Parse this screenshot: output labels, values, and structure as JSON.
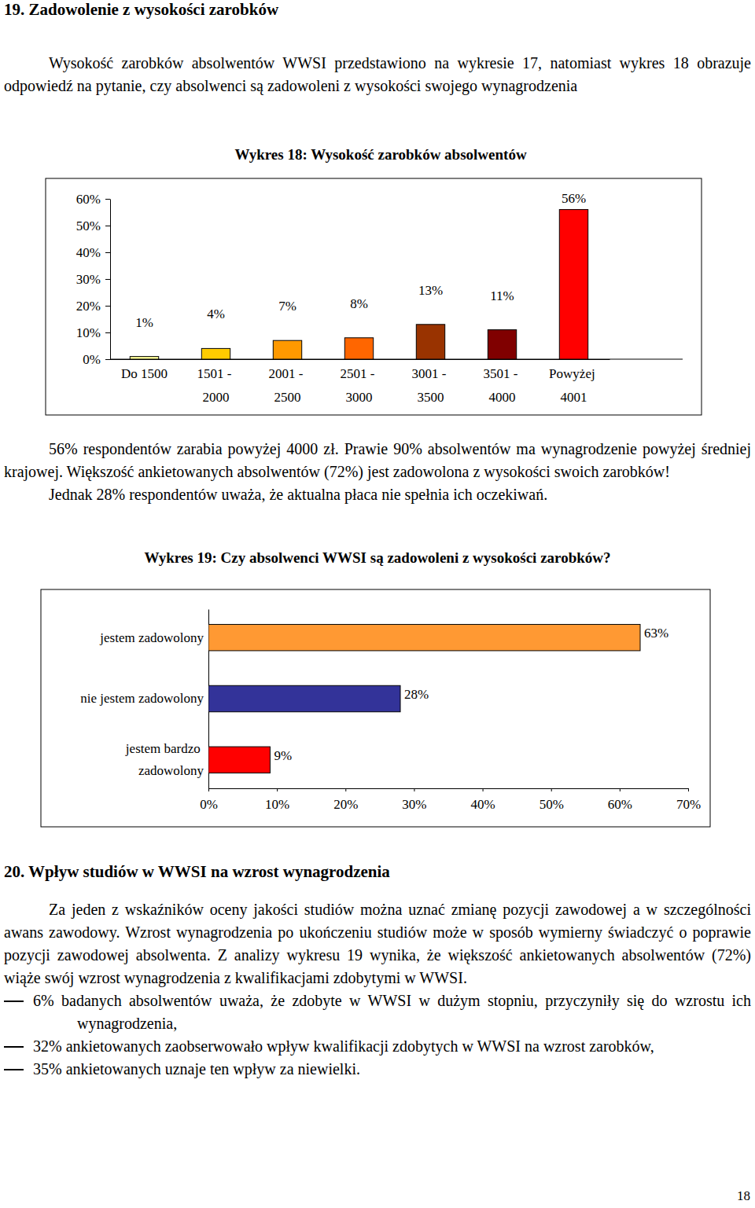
{
  "heading1": "19. Zadowolenie z wysokości zarobków",
  "intro": "Wysokość zarobków absolwentów WWSI przedstawiono na wykresie 17, natomiast wykres 18 obrazuje odpowiedź na pytanie, czy absolwenci są zadowoleni z wysokości swojego wynagrodzenia",
  "chart_data": [
    {
      "type": "bar",
      "title": "Wykres 18: Wysokość zarobków absolwentów",
      "categories": [
        "Do 1500",
        "1501 - 2000",
        "2001 - 2500",
        "2501 - 3000",
        "3001 - 3500",
        "3501 - 4000",
        "Powyżej 4001"
      ],
      "values": [
        1,
        4,
        7,
        8,
        13,
        11,
        56
      ],
      "value_labels": [
        "1%",
        "4%",
        "7%",
        "8%",
        "13%",
        "11%",
        "56%"
      ],
      "colors": [
        "#ffff99",
        "#ffcc00",
        "#ff9900",
        "#ff6600",
        "#993300",
        "#800000",
        "#ff0000"
      ],
      "ylim": [
        0,
        60
      ],
      "yticks": [
        {
          "value": 0,
          "label": "0%"
        },
        {
          "value": 10,
          "label": "10%"
        },
        {
          "value": 20,
          "label": "20%"
        },
        {
          "value": 30,
          "label": "30%"
        },
        {
          "value": 40,
          "label": "40%"
        },
        {
          "value": 50,
          "label": "50%"
        },
        {
          "value": 60,
          "label": "60%"
        }
      ],
      "data_labels": true
    },
    {
      "type": "bar",
      "orientation": "horizontal",
      "title": "Wykres 19: Czy absolwenci WWSI są zadowoleni z wysokości zarobków?",
      "categories": [
        "jestem zadowolony",
        "nie jestem zadowolony",
        "jestem bardzo zadowolony"
      ],
      "values": [
        63,
        28,
        9
      ],
      "value_labels": [
        "63%",
        "28%",
        "9%"
      ],
      "colors": [
        "#ff9933",
        "#333399",
        "#ff0000"
      ],
      "xlim": [
        0,
        70
      ],
      "xticks": [
        {
          "value": 0,
          "label": "0%"
        },
        {
          "value": 10,
          "label": "10%"
        },
        {
          "value": 20,
          "label": "20%"
        },
        {
          "value": 30,
          "label": "30%"
        },
        {
          "value": 40,
          "label": "40%"
        },
        {
          "value": 50,
          "label": "50%"
        },
        {
          "value": 60,
          "label": "60%"
        },
        {
          "value": 70,
          "label": "70%"
        }
      ],
      "data_labels": true
    }
  ],
  "paragraphs": [
    "56% respondentów zarabia powyżej 4000 zł. Prawie 90% absolwentów ma wynagrodzenie powyżej średniej krajowej. Większość ankietowanych absolwentów (72%) jest zadowolona z wysokości swoich zarobków!",
    "Jednak 28% respondentów uważa, że aktualna płaca nie spełnia ich oczekiwań."
  ],
  "heading2": "20. Wpływ studiów w WWSI na wzrost wynagrodzenia",
  "paragraph2": "Za jeden z wskaźników oceny jakości studiów można uznać zmianę pozycji zawodowej a w szczególności awans zawodowy. Wzrost wynagrodzenia po ukończeniu studiów może w sposób wymierny świadczyć o poprawie pozycji zawodowej absolwenta. Z analizy wykresu 19 wynika, że większość ankietowanych absolwentów (72%) wiąże swój wzrost wynagrodzenia z kwalifikacjami zdobytymi w WWSI.",
  "bullets": [
    "6% badanych absolwentów uważa, że zdobyte w WWSI w dużym stopniu, przyczyniły się do wzrostu ich wynagrodzenia,",
    "32% ankietowanych zaobserwowało wpływ kwalifikacji zdobytych w WWSI na wzrost zarobków,",
    "35% ankietowanych uznaje ten wpływ za niewielki."
  ],
  "page_number": "18"
}
